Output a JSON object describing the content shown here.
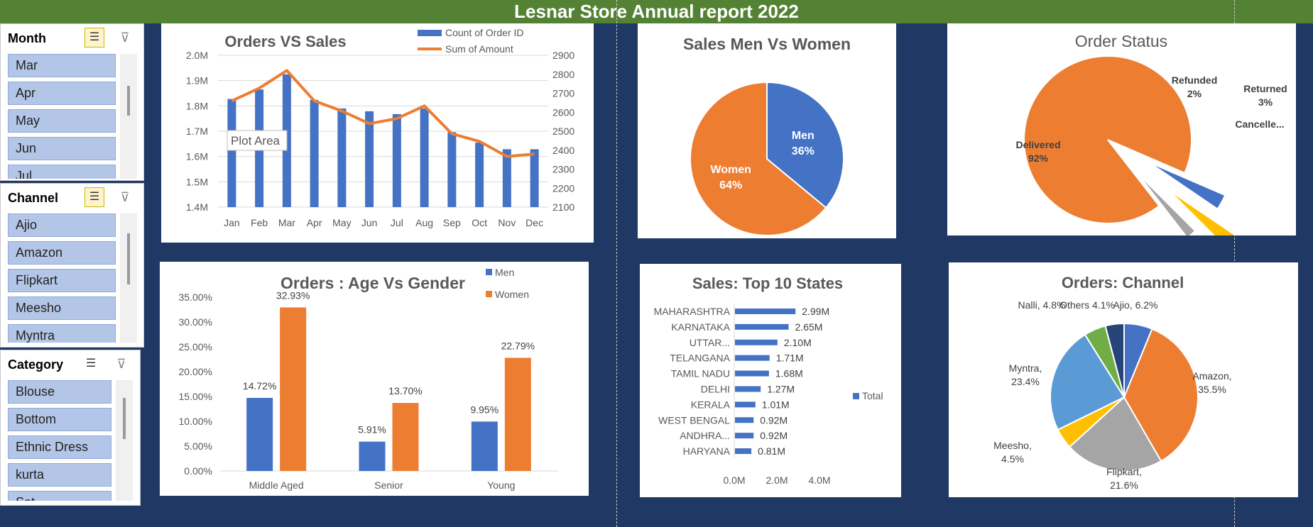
{
  "header": {
    "title": "Lesnar Store Annual report 2022"
  },
  "slicers": {
    "month": {
      "title": "Month",
      "items": [
        "Mar",
        "Apr",
        "May",
        "Jun",
        "Jul"
      ]
    },
    "channel": {
      "title": "Channel",
      "items": [
        "Ajio",
        "Amazon",
        "Flipkart",
        "Meesho",
        "Myntra"
      ]
    },
    "category": {
      "title": "Category",
      "items": [
        "Blouse",
        "Bottom",
        "Ethnic Dress",
        "kurta",
        "Set"
      ]
    },
    "icons": {
      "multiselect": "multi-select-icon",
      "clear": "clear-filter-icon"
    }
  },
  "colors": {
    "blue": "#4472c4",
    "orange": "#ed7d31",
    "gray": "#a5a5a5",
    "gold": "#ffc000",
    "lightblue": "#5b9bd5",
    "green": "#70ad47",
    "navy": "#264478",
    "banner": "#548235",
    "background": "#1f3864"
  },
  "tooltip": {
    "text": "Plot Area"
  },
  "chart_data": [
    {
      "id": "orders-vs-sales",
      "type": "bar",
      "title": "Orders VS Sales",
      "categories": [
        "Jan",
        "Feb",
        "Mar",
        "Apr",
        "May",
        "Jun",
        "Jul",
        "Aug",
        "Sep",
        "Oct",
        "Nov",
        "Dec"
      ],
      "series": [
        {
          "name": "Count of Order ID",
          "kind": "bar",
          "axis": "secondary",
          "values": [
            2670,
            2720,
            2800,
            2665,
            2620,
            2605,
            2590,
            2620,
            2495,
            2440,
            2405,
            2405
          ]
        },
        {
          "name": "Sum of Amount",
          "kind": "line",
          "axis": "primary",
          "values": [
            1.82,
            1.87,
            1.94,
            1.82,
            1.78,
            1.73,
            1.75,
            1.8,
            1.69,
            1.66,
            1.6,
            1.61
          ]
        }
      ],
      "yticks_left": [
        "1.4M",
        "1.5M",
        "1.6M",
        "1.7M",
        "1.8M",
        "1.9M",
        "2.0M"
      ],
      "ylim_left": [
        1.4,
        2.0
      ],
      "yticks_right": [
        "2100",
        "2200",
        "2300",
        "2400",
        "2500",
        "2600",
        "2700",
        "2800",
        "2900"
      ],
      "ylim_right": [
        2100,
        2900
      ],
      "grid": true,
      "legend": "top-right"
    },
    {
      "id": "sales-men-women",
      "type": "pie",
      "title": "Sales Men Vs Women",
      "labels": [
        "Men",
        "Women"
      ],
      "values": [
        36,
        64
      ],
      "display": [
        "36%",
        "64%"
      ]
    },
    {
      "id": "order-status",
      "type": "pie",
      "title": "Order Status",
      "labels": [
        "Delivered",
        "Cancelle...",
        "Returned",
        "Refunded"
      ],
      "values": [
        92,
        3,
        3,
        2
      ],
      "display": [
        "92%",
        "",
        "3%",
        "2%"
      ]
    },
    {
      "id": "orders-age-gender",
      "type": "bar",
      "title": "Orders : Age Vs Gender",
      "categories": [
        "Middle Aged",
        "Senior",
        "Young"
      ],
      "series": [
        {
          "name": "Men",
          "values": [
            14.72,
            5.91,
            9.95
          ],
          "labels": [
            "14.72%",
            "5.91%",
            "9.95%"
          ]
        },
        {
          "name": "Women",
          "values": [
            32.93,
            13.7,
            22.79
          ],
          "labels": [
            "32.93%",
            "13.70%",
            "22.79%"
          ]
        }
      ],
      "yticks": [
        "0.00%",
        "5.00%",
        "10.00%",
        "15.00%",
        "20.00%",
        "25.00%",
        "30.00%",
        "35.00%"
      ],
      "ylim": [
        0,
        35
      ],
      "legend": "top-right"
    },
    {
      "id": "sales-top-states",
      "type": "bar",
      "orientation": "horizontal",
      "title": "Sales: Top 10 States",
      "categories": [
        "MAHARASHTRA",
        "KARNATAKA",
        "UTTAR...",
        "TELANGANA",
        "TAMIL NADU",
        "DELHI",
        "KERALA",
        "WEST BENGAL",
        "ANDHRA...",
        "HARYANA"
      ],
      "series": [
        {
          "name": "Total",
          "values": [
            2.99,
            2.65,
            2.1,
            1.71,
            1.68,
            1.27,
            1.01,
            0.92,
            0.92,
            0.81
          ],
          "labels": [
            "2.99M",
            "2.65M",
            "2.10M",
            "1.71M",
            "1.68M",
            "1.27M",
            "1.01M",
            "0.92M",
            "0.92M",
            "0.81M"
          ]
        }
      ],
      "xticks": [
        "0.0M",
        "2.0M",
        "4.0M"
      ],
      "xlim": [
        0,
        4
      ],
      "legend": "right"
    },
    {
      "id": "orders-channel",
      "type": "pie",
      "title": "Orders: Channel",
      "labels": [
        "Ajio",
        "Amazon",
        "Flipkart",
        "Meesho",
        "Myntra",
        "Nalli",
        "Others"
      ],
      "values": [
        6.2,
        35.5,
        21.6,
        4.5,
        23.4,
        4.8,
        4.1
      ],
      "display": [
        "Ajio, 6.2%",
        "Amazon, 35.5%",
        "Flipkart, 21.6%",
        "Meesho, 4.5%",
        "Myntra, 23.4%",
        "Nalli, 4.8%",
        "Others 4.1%"
      ]
    }
  ]
}
